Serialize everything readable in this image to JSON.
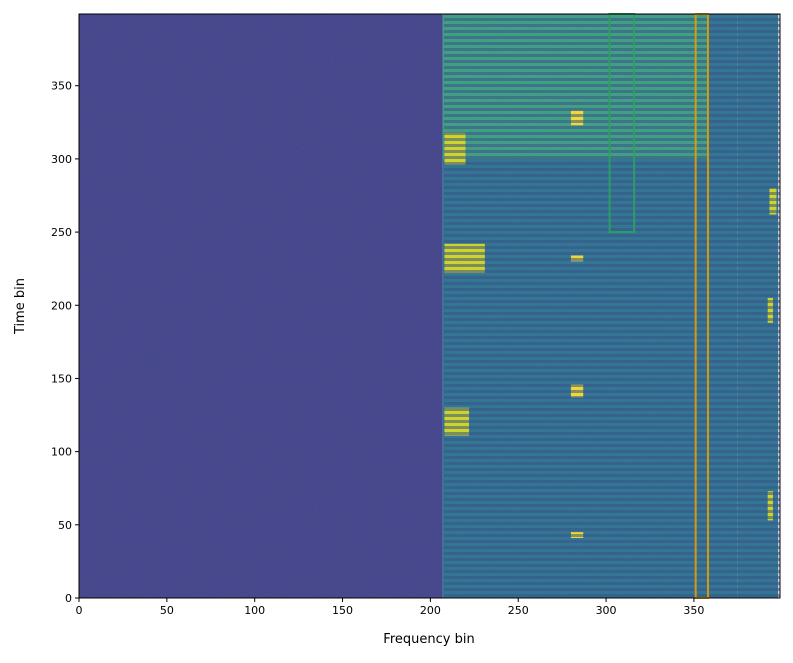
{
  "chart_data": {
    "type": "heatmap",
    "x_label": "Frequency bin",
    "y_label": "Time bin",
    "xlim": [
      0,
      399
    ],
    "ylim": [
      0,
      399
    ],
    "xticks": [
      0,
      50,
      100,
      150,
      200,
      250,
      300,
      350
    ],
    "yticks": [
      0,
      50,
      100,
      150,
      200,
      250,
      300,
      350
    ],
    "regions": [
      {
        "x": [
          0,
          207
        ],
        "y": [
          0,
          399
        ],
        "color": "#414487"
      },
      {
        "x": [
          207,
          375
        ],
        "y": [
          0,
          399
        ],
        "color": "#2a788e"
      },
      {
        "x": [
          207,
          358
        ],
        "y": [
          300,
          399
        ],
        "color": "#3aa57d"
      },
      {
        "x": [
          375,
          398
        ],
        "y": [
          0,
          399
        ],
        "color": "#2a788e"
      },
      {
        "x": [
          208,
          220
        ],
        "y": [
          296,
          318
        ],
        "color": "#d8e219"
      },
      {
        "x": [
          208,
          231
        ],
        "y": [
          222,
          242
        ],
        "color": "#d8e219"
      },
      {
        "x": [
          208,
          222
        ],
        "y": [
          111,
          130
        ],
        "color": "#d8e219"
      },
      {
        "x": [
          280,
          287
        ],
        "y": [
          323,
          333
        ],
        "color": "#fde725"
      },
      {
        "x": [
          280,
          287
        ],
        "y": [
          137,
          146
        ],
        "color": "#fde725"
      },
      {
        "x": [
          280,
          287
        ],
        "y": [
          230,
          234
        ],
        "color": "#fde725"
      },
      {
        "x": [
          280,
          287
        ],
        "y": [
          41,
          45
        ],
        "color": "#fde725"
      },
      {
        "x": [
          393,
          397
        ],
        "y": [
          262,
          280
        ],
        "color": "#d8e219"
      },
      {
        "x": [
          392,
          395
        ],
        "y": [
          188,
          205
        ],
        "color": "#d8e219"
      },
      {
        "x": [
          392,
          395
        ],
        "y": [
          53,
          73
        ],
        "color": "#d8e219"
      }
    ],
    "boxes": [
      {
        "x": [
          302,
          316
        ],
        "y": [
          250,
          399
        ],
        "color": "#2ca25f"
      },
      {
        "x": [
          351,
          358
        ],
        "y": [
          0,
          399
        ],
        "color": "#e69f00"
      }
    ]
  }
}
